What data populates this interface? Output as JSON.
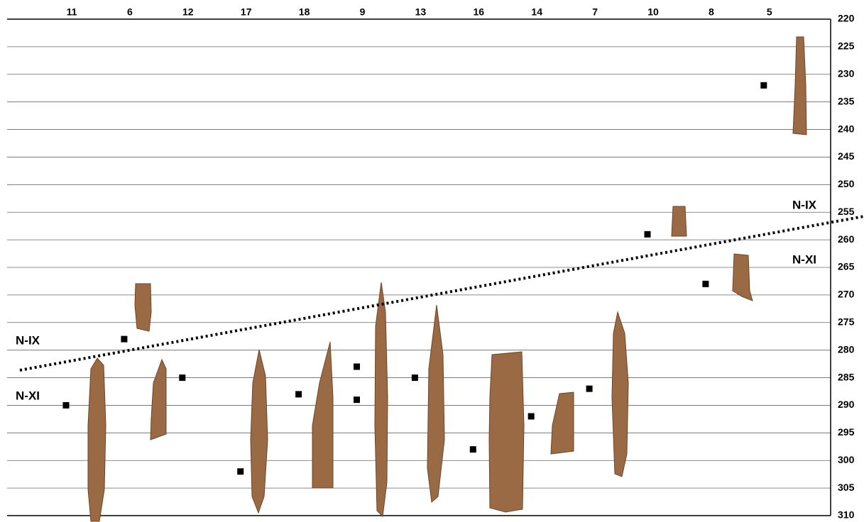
{
  "chart_data": {
    "type": "scatter",
    "categories": [
      "11",
      "6",
      "12",
      "17",
      "18",
      "9",
      "13",
      "16",
      "14",
      "7",
      "10",
      "8",
      "5"
    ],
    "values": [
      [
        290
      ],
      [
        278
      ],
      [
        285
      ],
      [
        302
      ],
      [
        288
      ],
      [
        283,
        289
      ],
      [
        285
      ],
      [
        298
      ],
      [
        292
      ],
      [
        287
      ],
      [
        259
      ],
      [
        268
      ],
      [
        232
      ]
    ],
    "color": "#000000",
    "ylim": [
      220,
      310
    ],
    "yticks": [
      220,
      225,
      230,
      235,
      240,
      245,
      250,
      255,
      260,
      265,
      270,
      275,
      280,
      285,
      290,
      295,
      300,
      305,
      310
    ],
    "grid": true,
    "annotations": [
      "N-IX",
      "N-XI",
      "N-IX",
      "N-XI"
    ]
  }
}
